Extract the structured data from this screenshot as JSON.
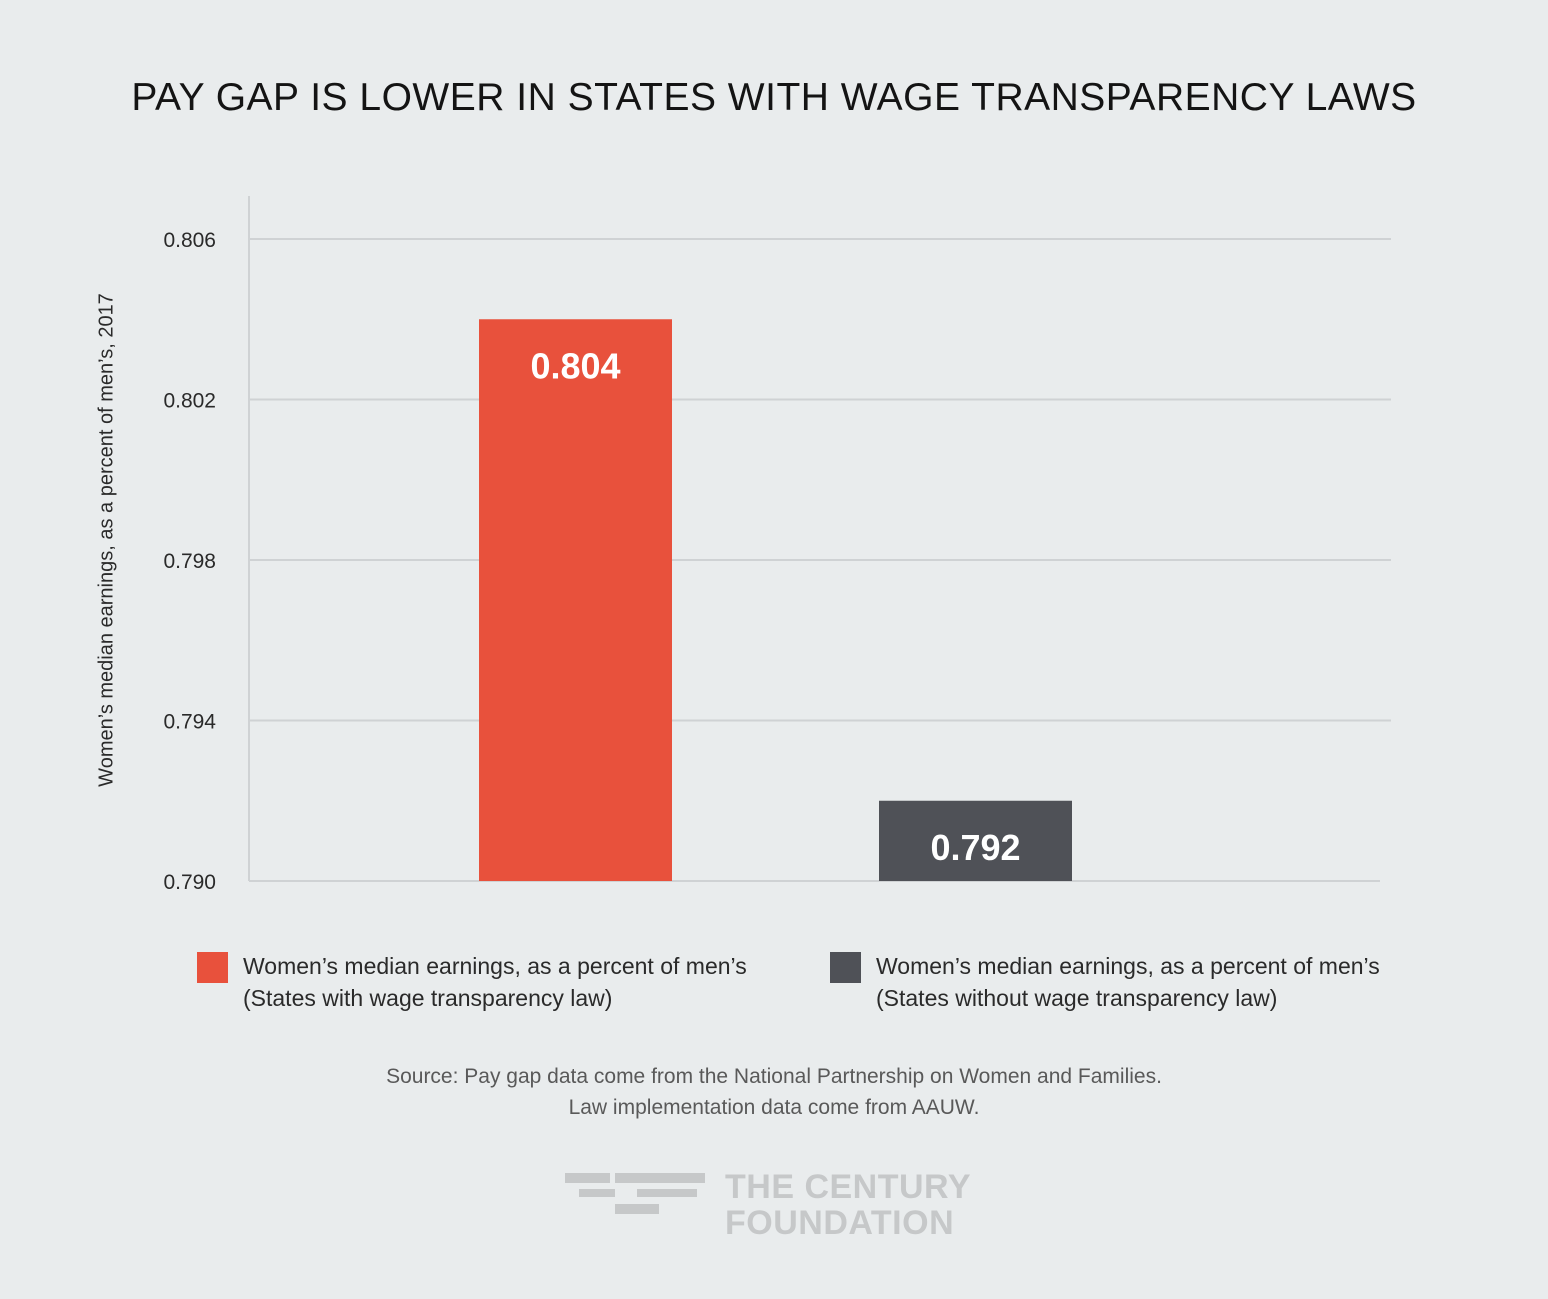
{
  "title": "PAY GAP IS LOWER IN STATES WITH WAGE TRANSPARENCY LAWS",
  "chart_data": {
    "type": "bar",
    "ylabel": "Women’s median earnings, as a percent of men’s, 2017",
    "ylim": [
      0.79,
      0.806
    ],
    "ytick_values": [
      0.79,
      0.794,
      0.798,
      0.802,
      0.806
    ],
    "ytick_labels": [
      "0.790",
      "0.794",
      "0.798",
      "0.802",
      "0.806"
    ],
    "grid": true,
    "legend_position": "bottom",
    "series": [
      {
        "name": "Women’s median earnings, as a percent of men’s (States with wage transparency law)",
        "value": 0.804,
        "label": "0.804",
        "color": "#e8513c"
      },
      {
        "name": "Women’s median earnings, as a percent of men’s (States without wage transparency law)",
        "value": 0.792,
        "label": "0.792",
        "color": "#4f5157"
      }
    ]
  },
  "legend": [
    {
      "line1": "Women’s median earnings, as a percent of men’s",
      "line2": "(States with wage transparency law)",
      "color": "#e8513c"
    },
    {
      "line1": "Women’s median earnings, as a percent of men’s",
      "line2": "(States without wage transparency law)",
      "color": "#4f5157"
    }
  ],
  "source": {
    "line1": "Source: Pay gap data come from the National Partnership on Women and Families.",
    "line2": "Law implementation data come from AAUW."
  },
  "logo": {
    "line1": "THE CENTURY",
    "line2": "FOUNDATION",
    "color": "#c6c8c9"
  }
}
